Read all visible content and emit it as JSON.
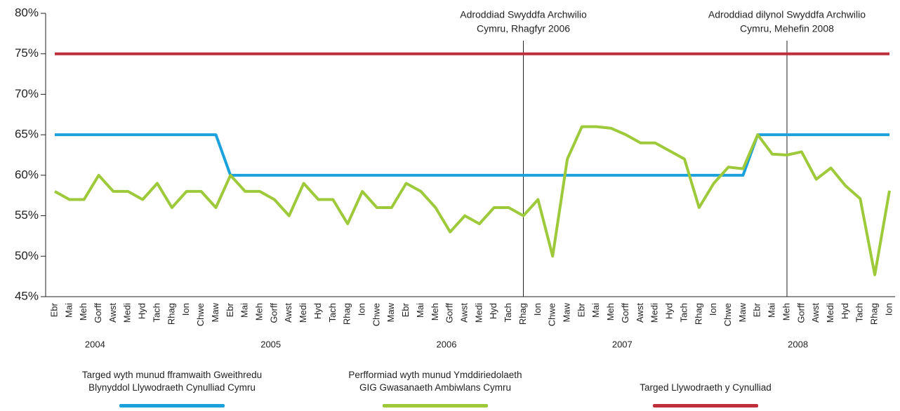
{
  "chart_data": {
    "type": "line",
    "categories": [
      "Ebr",
      "Mai",
      "Meh",
      "Gorff",
      "Awst",
      "Medi",
      "Hyd",
      "Tach",
      "Rhag",
      "Ion",
      "Chwe",
      "Maw",
      "Ebr",
      "Mai",
      "Meh",
      "Gorff",
      "Awst",
      "Medi",
      "Hyd",
      "Tach",
      "Rhag",
      "Ion",
      "Chwe",
      "Maw",
      "Ebr",
      "Mai",
      "Meh",
      "Gorff",
      "Awst",
      "Medi",
      "Hyd",
      "Tach",
      "Rhag",
      "Ion",
      "Chwe",
      "Maw",
      "Ebr",
      "Mai",
      "Meh",
      "Gorff",
      "Awst",
      "Medi",
      "Hyd",
      "Tach",
      "Rhag",
      "Ion",
      "Chwe",
      "Maw",
      "Ebr",
      "Mai",
      "Meh",
      "Gorff",
      "Awst",
      "Medi",
      "Hyd",
      "Tach",
      "Rhag",
      "Ion"
    ],
    "years": [
      "2004",
      "2005",
      "2006",
      "2007",
      "2008"
    ],
    "ylim": [
      45,
      80
    ],
    "yticks": [
      {
        "value": 45,
        "label": "45%"
      },
      {
        "value": 50,
        "label": "50%"
      },
      {
        "value": 55,
        "label": "55%"
      },
      {
        "value": 60,
        "label": "60%"
      },
      {
        "value": 65,
        "label": "65%"
      },
      {
        "value": 70,
        "label": "70%"
      },
      {
        "value": 75,
        "label": "75%"
      },
      {
        "value": 80,
        "label": "80%"
      }
    ],
    "annotations": [
      {
        "index": 32,
        "text": [
          "Adroddiad Swyddfa Archwilio",
          "Cymru, Rhagfyr 2006"
        ]
      },
      {
        "index": 50,
        "text": [
          "Adroddiad dilynol Swyddfa Archwilio",
          "Cymru, Mehefin 2008"
        ]
      }
    ],
    "series": [
      {
        "name": "Targed wyth munud fframwaith Gweithredu\nBlynyddol Llywodraeth Cynulliad Cymru",
        "color": "#1ba1dc",
        "values": [
          65,
          65,
          65,
          65,
          65,
          65,
          65,
          65,
          65,
          65,
          65,
          65,
          60,
          60,
          60,
          60,
          60,
          60,
          60,
          60,
          60,
          60,
          60,
          60,
          60,
          60,
          60,
          60,
          60,
          60,
          60,
          60,
          60,
          60,
          60,
          60,
          60,
          60,
          60,
          60,
          60,
          60,
          60,
          60,
          60,
          60,
          60,
          60,
          65,
          65,
          65,
          65,
          65,
          65,
          65,
          65,
          65,
          65
        ]
      },
      {
        "name": "Perfformiad wyth munud Ymddiriedolaeth\nGIG Gwasanaeth Ambiwlans Cymru",
        "color": "#9dc93b",
        "values": [
          58,
          57,
          57,
          60,
          58,
          58,
          57,
          59,
          56,
          58,
          58,
          56,
          60,
          58,
          58,
          57,
          55,
          59,
          57,
          57,
          54,
          58,
          56,
          56,
          59,
          58,
          56,
          53,
          55,
          54,
          56,
          56,
          55,
          57,
          50,
          62,
          66,
          66,
          65.8,
          65,
          64,
          64,
          63,
          62,
          56,
          59,
          61,
          60.8,
          65,
          62.6,
          62.5,
          62.9,
          59.5,
          60.9,
          58.7,
          57.1,
          47.7,
          58.1
        ]
      },
      {
        "name": "Targed Llywodraeth y Cynulliad",
        "color": "#bf2e3b",
        "values": [
          75,
          75,
          75,
          75,
          75,
          75,
          75,
          75,
          75,
          75,
          75,
          75,
          75,
          75,
          75,
          75,
          75,
          75,
          75,
          75,
          75,
          75,
          75,
          75,
          75,
          75,
          75,
          75,
          75,
          75,
          75,
          75,
          75,
          75,
          75,
          75,
          75,
          75,
          75,
          75,
          75,
          75,
          75,
          75,
          75,
          75,
          75,
          75,
          75,
          75,
          75,
          75,
          75,
          75,
          75,
          75,
          75,
          75
        ]
      }
    ]
  }
}
